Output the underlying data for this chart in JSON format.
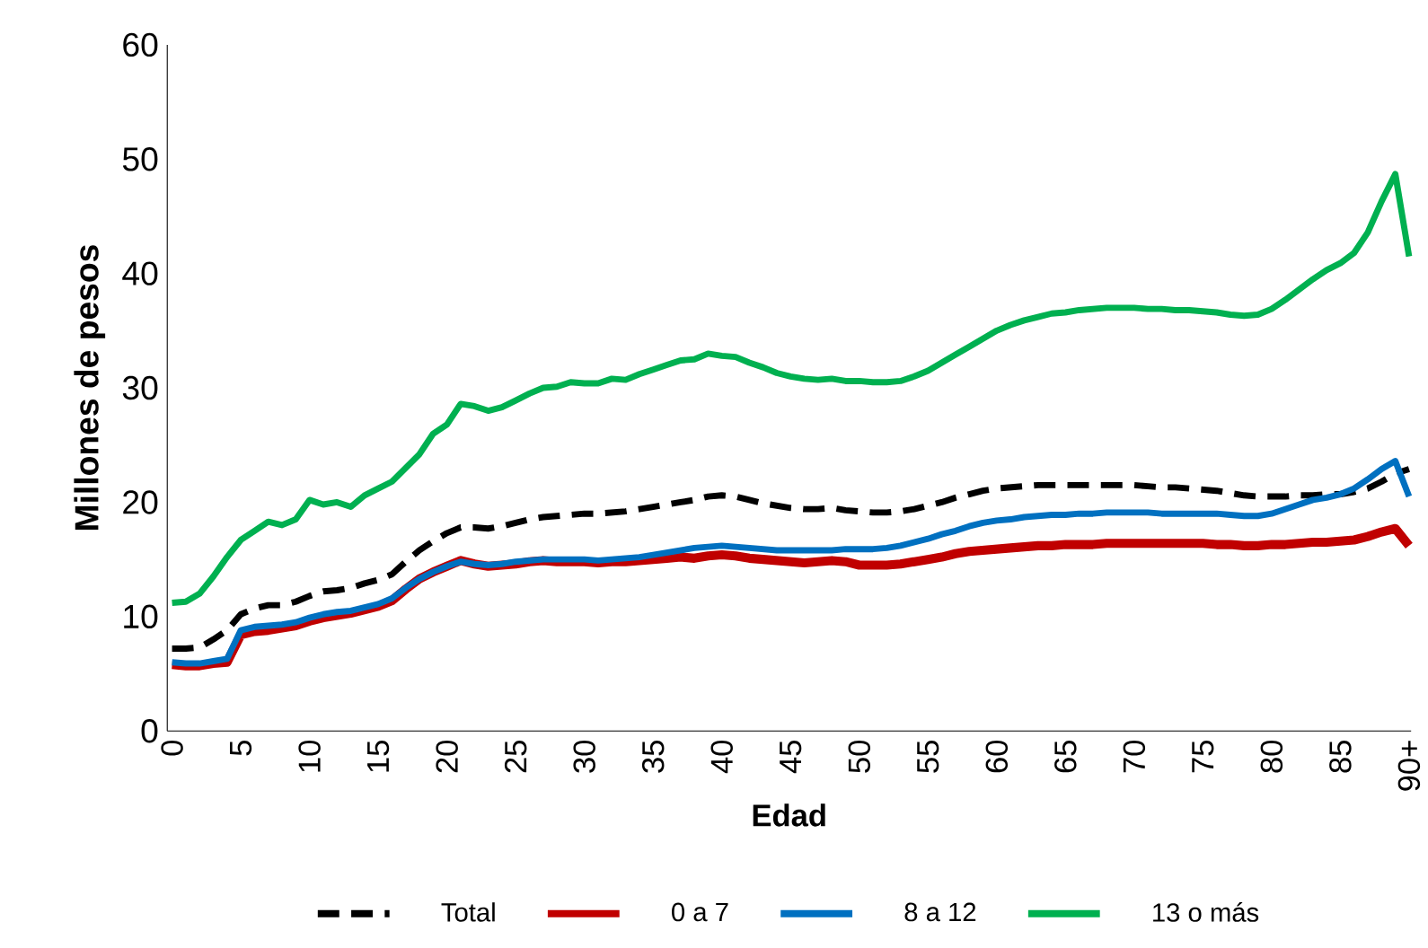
{
  "chart_data": {
    "type": "line",
    "xlabel": "Edad",
    "ylabel": "Millones de pesos",
    "categories": [
      "0",
      null,
      null,
      null,
      null,
      "5",
      null,
      null,
      null,
      null,
      "10",
      null,
      null,
      null,
      null,
      "15",
      null,
      null,
      null,
      null,
      "20",
      null,
      null,
      null,
      null,
      "25",
      null,
      null,
      null,
      null,
      "30",
      null,
      null,
      null,
      null,
      "35",
      null,
      null,
      null,
      null,
      "40",
      null,
      null,
      null,
      null,
      "45",
      null,
      null,
      null,
      null,
      "50",
      null,
      null,
      null,
      null,
      "55",
      null,
      null,
      null,
      null,
      "60",
      null,
      null,
      null,
      null,
      "65",
      null,
      null,
      null,
      null,
      "70",
      null,
      null,
      null,
      null,
      "75",
      null,
      null,
      null,
      null,
      "80",
      null,
      null,
      null,
      null,
      "85",
      null,
      null,
      null,
      null,
      "90+"
    ],
    "ylim": [
      0,
      60
    ],
    "yticks": [
      0,
      10,
      20,
      30,
      40,
      50,
      60
    ],
    "grid": false,
    "legend": "bottom",
    "marker": "none",
    "series": [
      {
        "name": "Total",
        "color": "#000000",
        "line_style": "dashed",
        "values": [
          7.2,
          7.2,
          7.3,
          8,
          8.8,
          10.2,
          10.7,
          11,
          11,
          11.3,
          11.8,
          12.2,
          12.3,
          12.5,
          12.9,
          13.2,
          13.7,
          14.8,
          15.8,
          16.6,
          17.3,
          17.8,
          17.8,
          17.7,
          17.9,
          18.2,
          18.5,
          18.7,
          18.8,
          18.9,
          19,
          19,
          19.1,
          19.2,
          19.4,
          19.6,
          19.8,
          20,
          20.2,
          20.5,
          20.6,
          20.5,
          20.2,
          19.9,
          19.7,
          19.5,
          19.4,
          19.4,
          19.5,
          19.3,
          19.2,
          19.1,
          19.1,
          19.2,
          19.4,
          19.7,
          20,
          20.4,
          20.7,
          21,
          21.2,
          21.3,
          21.4,
          21.5,
          21.5,
          21.5,
          21.5,
          21.5,
          21.5,
          21.5,
          21.5,
          21.4,
          21.3,
          21.3,
          21.2,
          21.1,
          21,
          20.8,
          20.6,
          20.5,
          20.5,
          20.5,
          20.6,
          20.6,
          20.7,
          20.7,
          20.9,
          21.2,
          21.8,
          22.5,
          22.9
        ]
      },
      {
        "name": "0 a 7",
        "color": "#c00000",
        "line_style": "solid",
        "values": [
          5.8,
          5.7,
          5.7,
          5.9,
          6,
          8.4,
          8.7,
          8.8,
          9,
          9.2,
          9.6,
          9.9,
          10.1,
          10.3,
          10.6,
          10.9,
          11.4,
          12.4,
          13.3,
          13.9,
          14.4,
          14.9,
          14.6,
          14.4,
          14.5,
          14.6,
          14.8,
          14.9,
          14.8,
          14.8,
          14.8,
          14.7,
          14.8,
          14.8,
          14.9,
          15,
          15.1,
          15.2,
          15.1,
          15.3,
          15.4,
          15.3,
          15.1,
          15,
          14.9,
          14.8,
          14.7,
          14.8,
          14.9,
          14.8,
          14.5,
          14.5,
          14.5,
          14.6,
          14.8,
          15,
          15.2,
          15.5,
          15.7,
          15.8,
          15.9,
          16,
          16.1,
          16.2,
          16.2,
          16.3,
          16.3,
          16.3,
          16.4,
          16.4,
          16.4,
          16.4,
          16.4,
          16.4,
          16.4,
          16.4,
          16.3,
          16.3,
          16.2,
          16.2,
          16.3,
          16.3,
          16.4,
          16.5,
          16.5,
          16.6,
          16.7,
          17,
          17.4,
          17.7,
          16.2
        ]
      },
      {
        "name": "8 a 12",
        "color": "#0070c0",
        "line_style": "solid",
        "values": [
          6,
          5.9,
          5.9,
          6.1,
          6.3,
          8.8,
          9.1,
          9.2,
          9.3,
          9.5,
          9.9,
          10.2,
          10.4,
          10.5,
          10.8,
          11.1,
          11.6,
          12.5,
          13.3,
          13.9,
          14.4,
          14.8,
          14.6,
          14.5,
          14.6,
          14.8,
          14.9,
          15,
          15,
          15,
          15,
          14.9,
          15,
          15.1,
          15.2,
          15.4,
          15.6,
          15.8,
          16,
          16.1,
          16.2,
          16.1,
          16,
          15.9,
          15.8,
          15.8,
          15.8,
          15.8,
          15.8,
          15.9,
          15.9,
          15.9,
          16,
          16.2,
          16.5,
          16.8,
          17.2,
          17.5,
          17.9,
          18.2,
          18.4,
          18.5,
          18.7,
          18.8,
          18.9,
          18.9,
          19,
          19,
          19.1,
          19.1,
          19.1,
          19.1,
          19,
          19,
          19,
          19,
          19,
          18.9,
          18.8,
          18.8,
          19,
          19.4,
          19.8,
          20.2,
          20.4,
          20.7,
          21.2,
          22,
          22.9,
          23.6,
          20.5
        ]
      },
      {
        "name": "13 o más",
        "color": "#00b050",
        "line_style": "solid",
        "values": [
          11.2,
          11.3,
          12,
          13.5,
          15.2,
          16.7,
          17.5,
          18.3,
          18,
          18.5,
          20.2,
          19.8,
          20,
          19.6,
          20.6,
          21.2,
          21.8,
          23,
          24.2,
          26,
          26.8,
          28.6,
          28.4,
          28,
          28.3,
          28.9,
          29.5,
          30,
          30.1,
          30.5,
          30.4,
          30.4,
          30.8,
          30.7,
          31.2,
          31.6,
          32,
          32.4,
          32.5,
          33,
          32.8,
          32.7,
          32.2,
          31.8,
          31.3,
          31,
          30.8,
          30.7,
          30.8,
          30.6,
          30.6,
          30.5,
          30.5,
          30.6,
          31,
          31.5,
          32.2,
          32.9,
          33.6,
          34.3,
          35,
          35.5,
          35.9,
          36.2,
          36.5,
          36.6,
          36.8,
          36.9,
          37,
          37,
          37,
          36.9,
          36.9,
          36.8,
          36.8,
          36.7,
          36.6,
          36.4,
          36.3,
          36.4,
          36.9,
          37.7,
          38.6,
          39.5,
          40.3,
          40.9,
          41.8,
          43.6,
          46.3,
          48.7,
          41.5
        ]
      }
    ]
  }
}
